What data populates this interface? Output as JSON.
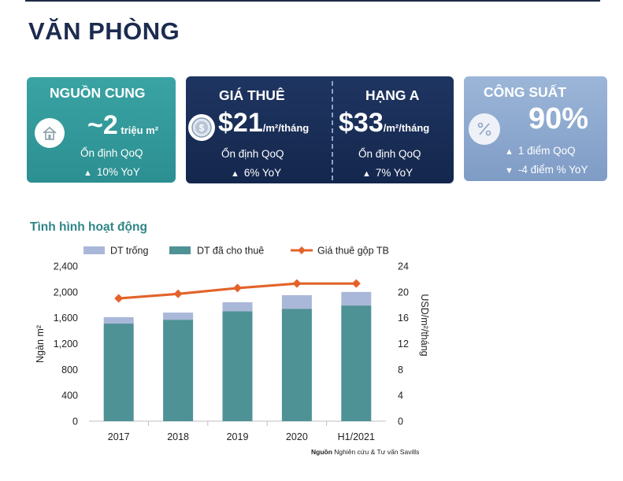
{
  "page": {
    "title": "VĂN PHÒNG"
  },
  "cards": {
    "supply": {
      "title": "NGUỒN CUNG",
      "value": "~2",
      "unit": " triệu m²",
      "line1": "Ổn định QoQ",
      "line2": "10% YoY",
      "icon": "house-icon",
      "color": "#3aa3a3"
    },
    "rent": {
      "title": "GIÁ THUÊ",
      "value": "$21",
      "unit": "/m²/tháng",
      "line1": "Ổn định QoQ",
      "line2": "6% YoY",
      "icon": "coin-icon",
      "color": "#1c2f58"
    },
    "grade_a": {
      "title": "HẠNG A",
      "value": "$33",
      "unit": "/m²/tháng",
      "line1": "Ổn định QoQ",
      "line2": "7% YoY"
    },
    "occupancy": {
      "title": "CÔNG SUẤT",
      "value": "90%",
      "line1": "1 điểm QoQ",
      "line2": "-4 điểm % YoY",
      "icon": "percent-icon",
      "color": "#8ba7cf"
    }
  },
  "chart": {
    "heading": "Tình hình hoạt động",
    "source_label": "Nguồn",
    "source_text": "Nghiên cứu & Tư vấn Savills"
  },
  "chart_data": {
    "type": "bar",
    "stacked": true,
    "categories": [
      "2017",
      "2018",
      "2019",
      "2020",
      "H1/2021"
    ],
    "series": [
      {
        "name": "DT trống",
        "type": "bar",
        "axis": "left",
        "color": "#a9b8d8",
        "values": [
          100,
          110,
          140,
          210,
          210
        ]
      },
      {
        "name": "DT đã cho thuê",
        "type": "bar",
        "axis": "left",
        "color": "#4f9296",
        "values": [
          1510,
          1570,
          1700,
          1740,
          1790
        ]
      },
      {
        "name": "Giá thuê gộp TB",
        "type": "line",
        "axis": "right",
        "color": "#e3642a",
        "values": [
          19.0,
          19.7,
          20.6,
          21.3,
          21.3
        ]
      }
    ],
    "ylabel": "Ngàn m²",
    "y2label": "USD/m²/tháng",
    "ylim": [
      0,
      2400
    ],
    "y2lim": [
      0,
      24
    ],
    "yticks": [
      "0",
      "400",
      "800",
      "1,200",
      "1,600",
      "2,000",
      "2,400"
    ],
    "y2ticks": [
      "0",
      "4",
      "8",
      "12",
      "16",
      "20",
      "24"
    ],
    "legend_position": "top"
  }
}
